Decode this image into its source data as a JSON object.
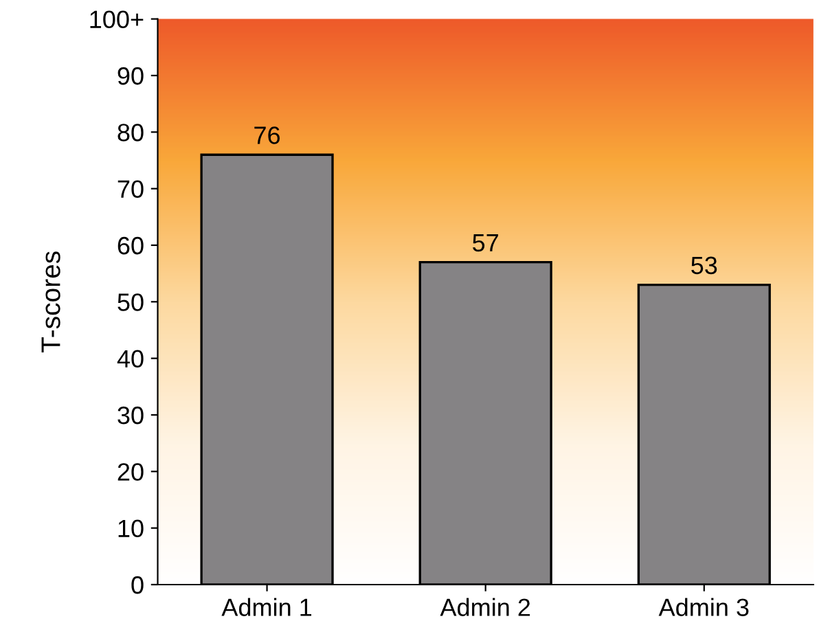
{
  "chart_data": {
    "type": "bar",
    "ylabel": "T-scores",
    "categories": [
      "Admin 1",
      "Admin 2",
      "Admin 3"
    ],
    "values": [
      76,
      57,
      53
    ],
    "color": "#858385",
    "ylim": [
      0,
      100
    ],
    "yticks": [
      0,
      10,
      20,
      30,
      40,
      50,
      60,
      70,
      80,
      90,
      {
        "value": 100,
        "label": "100+"
      }
    ],
    "data_labels": true,
    "grid": false
  }
}
